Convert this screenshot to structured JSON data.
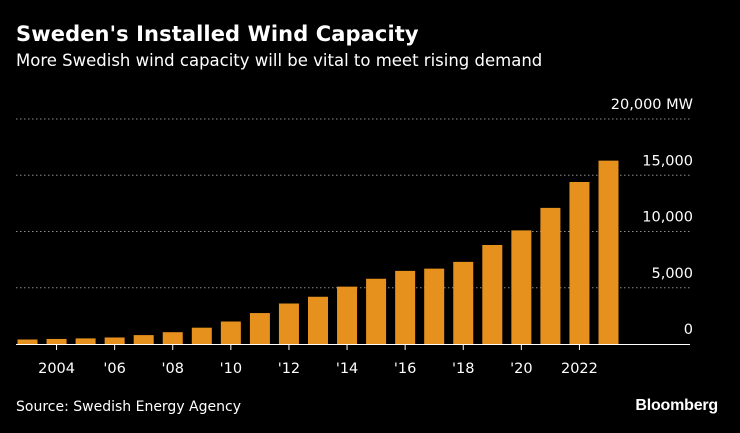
{
  "header": {
    "title": "Sweden's Installed Wind Capacity",
    "subtitle": "More Swedish wind capacity will be vital to meet rising demand"
  },
  "footer": {
    "source": "Source: Swedish Energy Agency",
    "brand": "Bloomberg"
  },
  "colors": {
    "bar": "#e6911e",
    "grid": "#8c8c8c",
    "baseline": "#ffffff",
    "text": "#ffffff",
    "background": "#000000"
  },
  "chart_data": {
    "type": "bar",
    "title": "Sweden's Installed Wind Capacity",
    "subtitle": "More Swedish wind capacity will be vital to meet rising demand",
    "xlabel": "",
    "ylabel": "MW",
    "ylim": [
      0,
      20000
    ],
    "y_ticks": [
      {
        "value": 20000,
        "label": "20,000 MW"
      },
      {
        "value": 15000,
        "label": "15,000"
      },
      {
        "value": 10000,
        "label": "10,000"
      },
      {
        "value": 5000,
        "label": "5,000"
      },
      {
        "value": 0,
        "label": "0"
      }
    ],
    "categories": [
      2003,
      2004,
      2005,
      2006,
      2007,
      2008,
      2009,
      2010,
      2011,
      2012,
      2013,
      2014,
      2015,
      2016,
      2017,
      2018,
      2019,
      2020,
      2021,
      2022,
      2023
    ],
    "values": [
      400,
      450,
      500,
      580,
      790,
      1050,
      1450,
      2000,
      2750,
      3600,
      4200,
      5100,
      5800,
      6500,
      6700,
      7300,
      8800,
      10100,
      12100,
      14400,
      16300
    ],
    "x_ticks": [
      {
        "category": 2004,
        "label": "2004"
      },
      {
        "category": 2006,
        "label": "'06"
      },
      {
        "category": 2008,
        "label": "'08"
      },
      {
        "category": 2010,
        "label": "'10"
      },
      {
        "category": 2012,
        "label": "'12"
      },
      {
        "category": 2014,
        "label": "'14"
      },
      {
        "category": 2016,
        "label": "'16"
      },
      {
        "category": 2018,
        "label": "'18"
      },
      {
        "category": 2020,
        "label": "'20"
      },
      {
        "category": 2022,
        "label": "2022"
      }
    ],
    "grid": true,
    "legend": "none"
  }
}
